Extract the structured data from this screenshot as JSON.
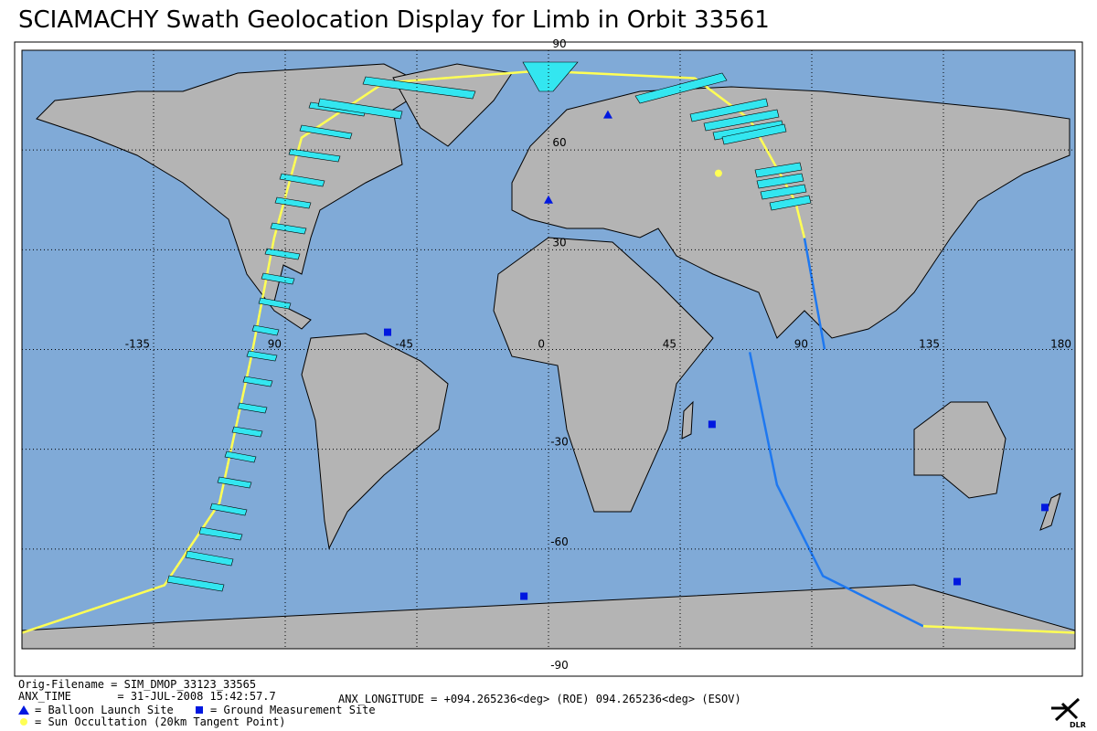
{
  "title": "SCIAMACHY Swath Geolocation Display for Limb in Orbit 33561",
  "map": {
    "lon_ticks": [
      -135,
      {
        "value": -90,
        "label": "90"
      },
      -45,
      0,
      45,
      90,
      135,
      180
    ],
    "lat_ticks": [
      90,
      60,
      30,
      -30,
      -60,
      -90
    ],
    "track": [
      {
        "color": "#ffff55",
        "lon": [
          -180,
          -131.3,
          -112.5,
          -101.6,
          -93.8,
          -84.4,
          -56.3,
          -3.1,
          50,
          68.8,
          84.4,
          87.5
        ],
        "lat": [
          -85.2,
          -70.9,
          -46.2,
          -2.2,
          33.5,
          63.7,
          80.2,
          83.8,
          81.6,
          69.2,
          44.5,
          33.5
        ]
      },
      {
        "color": "#1e78f0",
        "lon": [
          87.5,
          94.4
        ],
        "lat": [
          33.5,
          0
        ]
      },
      {
        "color": "#1e78f0",
        "lon": [
          68.8,
          78.1,
          93.8,
          128.1
        ],
        "lat": [
          -0.8,
          -40.7,
          -68.1,
          -83.2
        ]
      },
      {
        "color": "#ffff55",
        "lon": [
          128.1,
          180
        ],
        "lat": [
          -83.2,
          -85.2
        ]
      }
    ],
    "balloon_sites": {
      "lon": [
        20.3,
        0
      ],
      "lat": [
        70.6,
        45
      ]
    },
    "ground_sites": {
      "lon": [
        -55,
        55.9,
        169.7,
        -8.4,
        139.7
      ],
      "lat": [
        5.2,
        -22.5,
        -47.5,
        -74.2,
        -69.8
      ]
    },
    "sun_occultation": {
      "lon": [
        58.1
      ],
      "lat": [
        53
      ]
    }
  },
  "footer": {
    "orig_filename": "Orig-Filename = SIM_DMOP_33123_33565",
    "anx_time": "ANX_TIME       = 31-JUL-2008 15:42:57.7",
    "anx_longitude": "ANX_LONGITUDE = +094.265236<deg> (ROE) 094.265236<deg> (ESOV)"
  },
  "legend": {
    "balloon": "= Balloon Launch Site",
    "ground": "= Ground Measurement Site",
    "sun": "= Sun Occultation (20km Tangent Point)"
  },
  "logo": "DLR"
}
